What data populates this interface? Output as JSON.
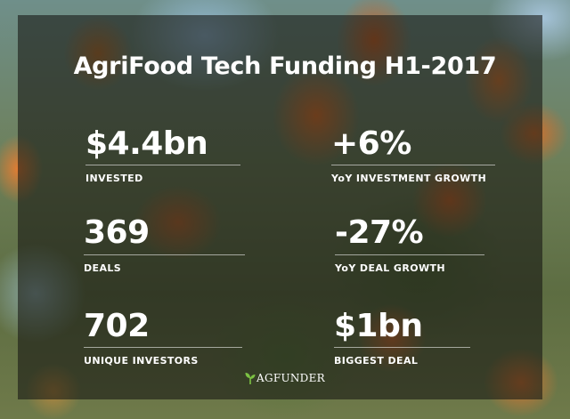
{
  "title": "AgriFood Tech Funding H1-2017",
  "stats": [
    {
      "value": "$4.4bn",
      "label": "INVESTED"
    },
    {
      "value": "+6%",
      "label": "YoY INVESTMENT GROWTH"
    },
    {
      "value": "369",
      "label": "DEALS"
    },
    {
      "value": "-27%",
      "label": "YoY DEAL GROWTH"
    },
    {
      "value": "702",
      "label": "UNIQUE INVESTORS"
    },
    {
      "value": "$1bn",
      "label": "BIGGEST DEAL"
    }
  ],
  "logo": {
    "text": "AGFUNDER",
    "icon": "sprout-icon",
    "icon_color": "#7cc243"
  }
}
